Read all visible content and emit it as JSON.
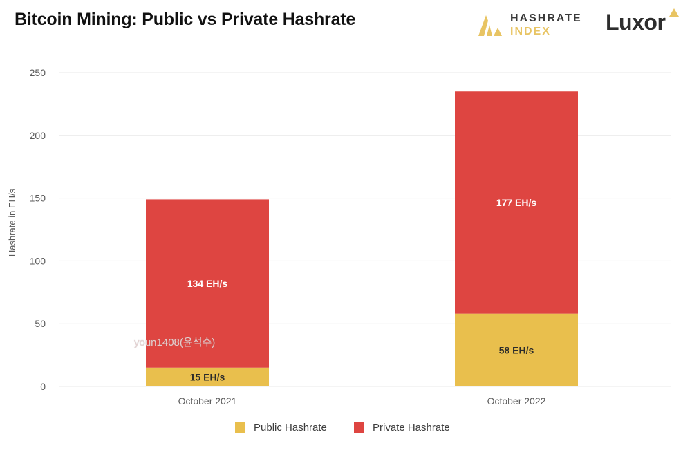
{
  "header": {
    "title": "Bitcoin Mining: Public vs Private Hashrate",
    "brand_line1": "HASHRATE",
    "brand_line2": "INDEX",
    "brand_logo": "Luxor"
  },
  "watermark": "youn1408(윤석수)",
  "colors": {
    "public": "#e9bf4d",
    "private": "#de4541",
    "grid": "#e9e9e9",
    "axis_text": "#5a5a5a"
  },
  "chart_data": {
    "type": "bar",
    "stacked": true,
    "title": "Bitcoin Mining: Public vs Private Hashrate",
    "xlabel": "",
    "ylabel": "Hashrate in EH/s",
    "ylim": [
      0,
      250
    ],
    "yticks": [
      0,
      50,
      100,
      150,
      200,
      250
    ],
    "categories": [
      "October 2021",
      "October 2022"
    ],
    "series": [
      {
        "name": "Public Hashrate",
        "values": [
          15,
          58
        ],
        "labels": [
          "15 EH/s",
          "58 EH/s"
        ]
      },
      {
        "name": "Private Hashrate",
        "values": [
          134,
          177
        ],
        "labels": [
          "134 EH/s",
          "177 EH/s"
        ]
      }
    ],
    "legend_position": "bottom-center",
    "grid": true
  }
}
